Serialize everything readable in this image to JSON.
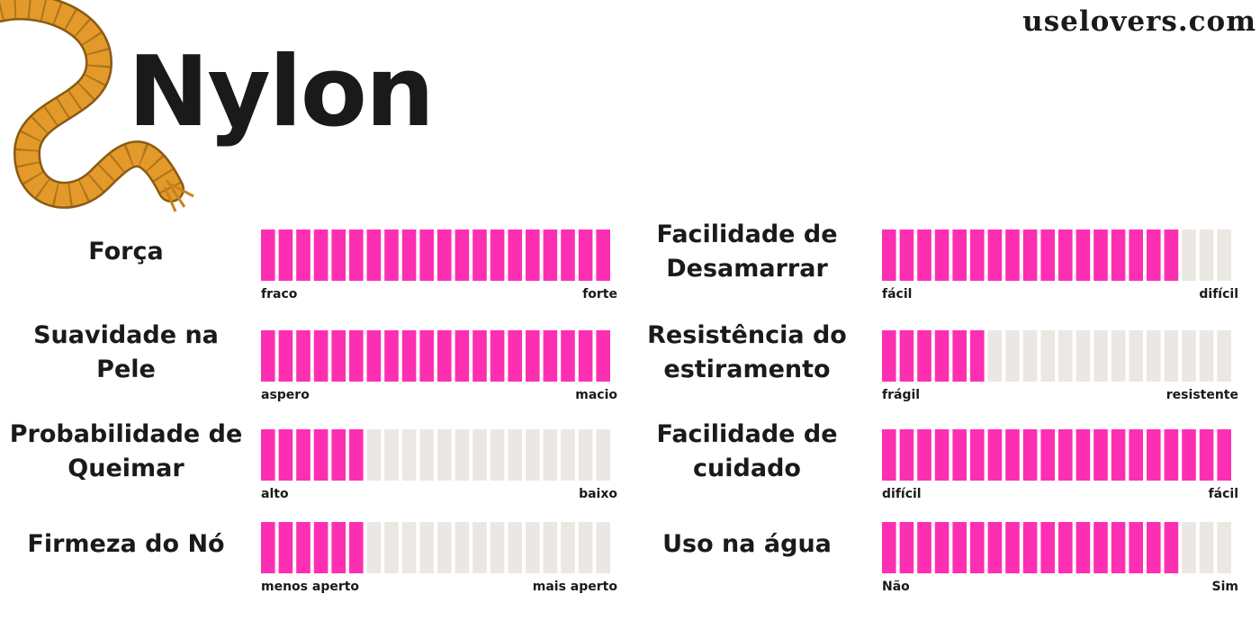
{
  "brand": "uselovers.com",
  "title": "Nylon",
  "scale_max": 20,
  "ratings": [
    {
      "label": [
        "Força"
      ],
      "value": 20,
      "low": "fraco",
      "high": "forte"
    },
    {
      "label": [
        "Suavidade na",
        "Pele"
      ],
      "value": 20,
      "low": "aspero",
      "high": "macio"
    },
    {
      "label": [
        "Probabilidade de",
        "Queimar"
      ],
      "value": 6,
      "low": "alto",
      "high": "baixo"
    },
    {
      "label": [
        "Firmeza do Nó"
      ],
      "value": 6,
      "low": "menos aperto",
      "high": "mais aperto"
    },
    {
      "label": [
        "Facilidade de",
        "Desamarrar"
      ],
      "value": 17,
      "low": "fácil",
      "high": "difícil"
    },
    {
      "label": [
        "Resistência do",
        "estiramento"
      ],
      "value": 6,
      "low": "frágil",
      "high": "resistente"
    },
    {
      "label": [
        "Facilidade de",
        "cuidado"
      ],
      "value": 20,
      "low": "difícil",
      "high": "fácil"
    },
    {
      "label": [
        "Uso na água"
      ],
      "value": 17,
      "low": "Não",
      "high": "Sim"
    }
  ]
}
